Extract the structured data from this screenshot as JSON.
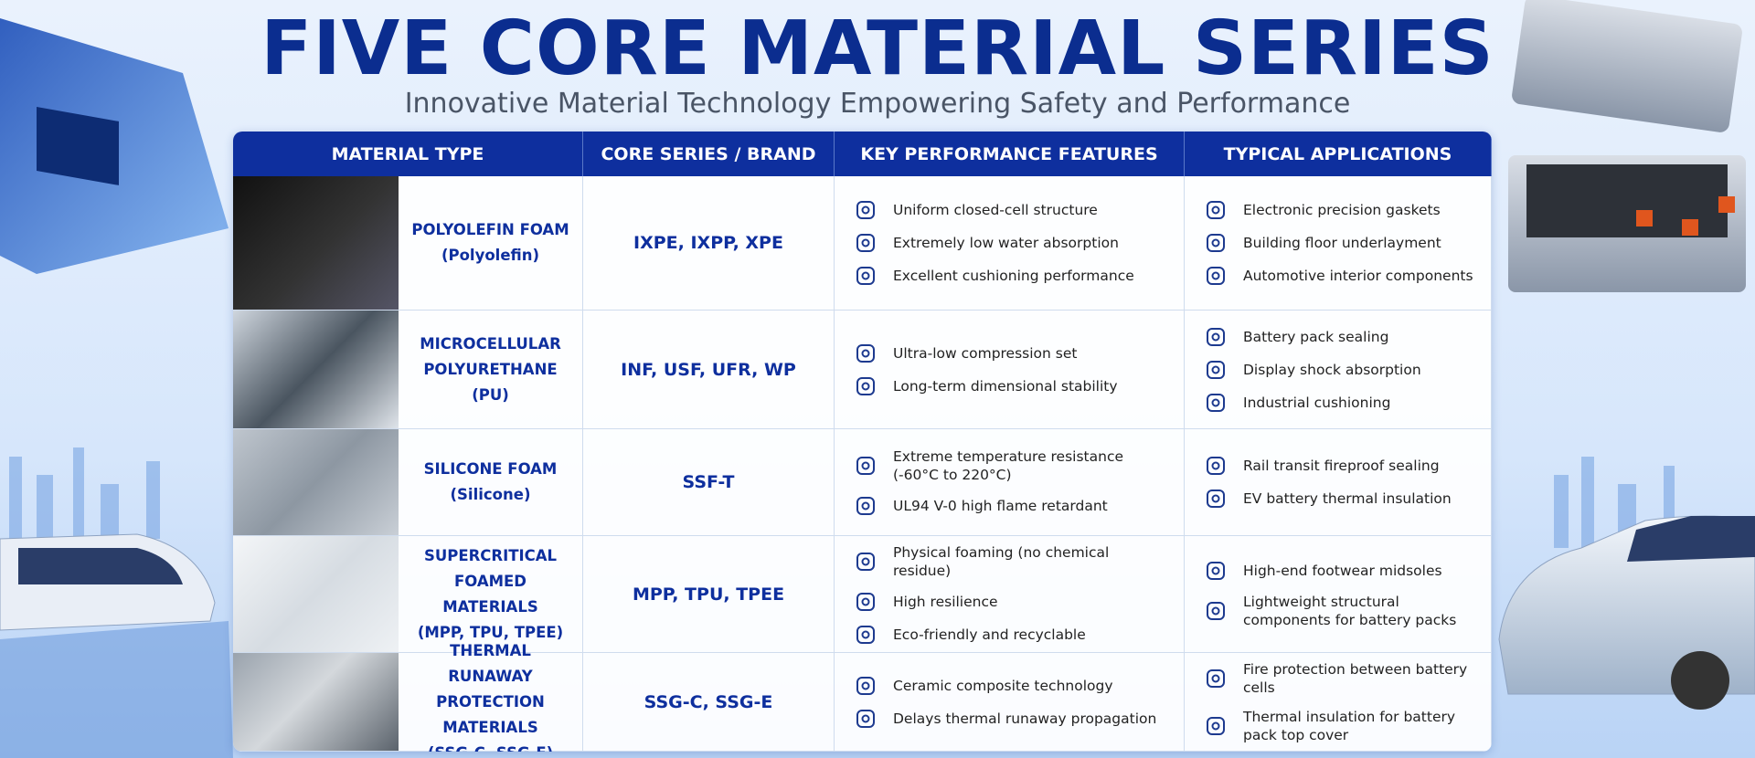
{
  "header": {
    "title": "FIVE CORE MATERIAL SERIES",
    "subtitle": "Innovative Material Technology Empowering Safety and Performance"
  },
  "table": {
    "columns": [
      "MATERIAL TYPE",
      "CORE SERIES / BRAND",
      "KEY PERFORMANCE FEATURES",
      "TYPICAL APPLICATIONS"
    ],
    "rows": [
      {
        "name": "POLYOLEFIN FOAM",
        "note": "(Polyolefin)",
        "series": "IXPE, IXPP, XPE",
        "features": [
          "Uniform closed-cell structure",
          "Extremely low water absorption",
          "Excellent cushioning performance"
        ],
        "applications": [
          "Electronic precision gaskets",
          "Building floor underlayment",
          "Automotive interior components"
        ]
      },
      {
        "name": "MICROCELLULAR POLYURETHANE (PU)",
        "series": "INF, USF, UFR, WP",
        "features": [
          "Ultra-low compression set",
          "Long-term dimensional stability"
        ],
        "applications": [
          "Battery pack sealing",
          "Display shock absorption",
          "Industrial cushioning"
        ]
      },
      {
        "name": "SILICONE FOAM",
        "note": "(Silicone)",
        "series": "SSF-T",
        "features": [
          "Extreme temperature resistance (-60°C to 220°C)",
          "UL94 V-0 high flame retardant"
        ],
        "applications": [
          "Rail transit fireproof sealing",
          "EV battery thermal insulation"
        ]
      },
      {
        "name": "SUPERCRITICAL FOAMED MATERIALS",
        "note": "(MPP, TPU, TPEE)",
        "series": "MPP, TPU, TPEE",
        "features": [
          "Physical foaming (no chemical residue)",
          "High resilience",
          "Eco-friendly and recyclable"
        ],
        "applications": [
          "High-end footwear midsoles",
          "Lightweight structural components for battery packs"
        ]
      },
      {
        "name": "THERMAL RUNAWAY PROTECTION MATERIALS",
        "note": "(SSG-C, SSG-E)",
        "series": "SSG-C, SSG-E",
        "features": [
          "Ceramic composite technology",
          "Delays thermal runaway propagation"
        ],
        "applications": [
          "Fire protection between battery cells",
          "Thermal insulation for battery pack top cover"
        ]
      }
    ]
  }
}
